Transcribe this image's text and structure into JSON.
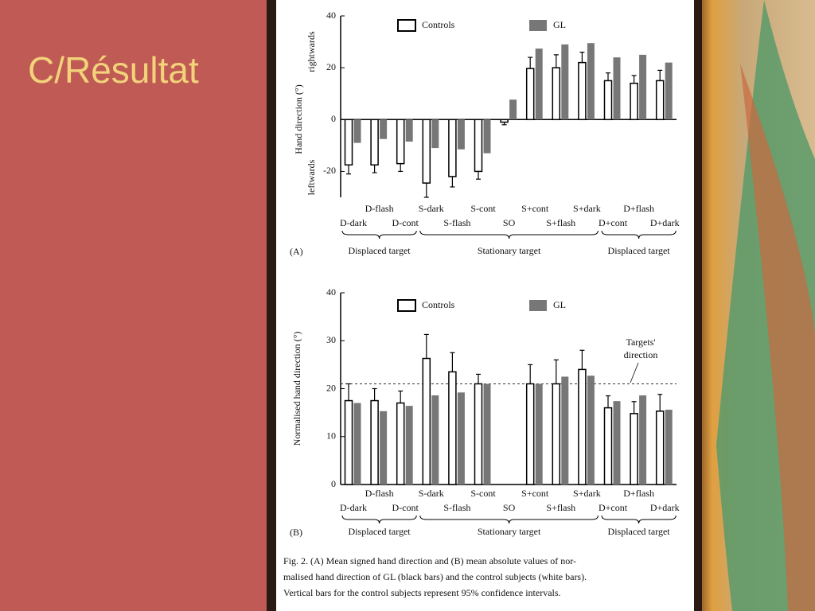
{
  "slide_title": "C/Résultat",
  "caption": [
    "Fig. 2.  (A) Mean signed hand direction and (B) mean absolute values of nor-",
    "malised hand direction of GL (black bars) and the control subjects (white bars).",
    "Vertical bars for the control subjects represent 95% confidence intervals."
  ],
  "chart_data": [
    {
      "type": "bar",
      "panel_label": "(A)",
      "y_label": "Hand direction (°)",
      "y_label_positive": "rightwards",
      "y_label_negative": "leftwards",
      "categories": [
        "D-dark",
        "D-flash",
        "D-cont",
        "S-dark",
        "S-flash",
        "S-cont",
        "SO",
        "S+cont",
        "S+flash",
        "S+dark",
        "D+cont",
        "D+flash",
        "D+dark"
      ],
      "group_labels": [
        "Displaced target",
        "Stationary target",
        "Displaced target"
      ],
      "series": [
        {
          "name": "Controls",
          "color": "#ffffff",
          "values": [
            -17.5,
            -17.5,
            -17,
            -24.5,
            -22,
            -20,
            -1,
            19.7,
            20,
            22,
            15,
            14,
            15
          ],
          "errors": [
            3.5,
            3,
            3,
            5.5,
            4,
            3,
            1,
            4.3,
            5,
            4,
            3,
            3,
            4
          ]
        },
        {
          "name": "GL",
          "color": "#777777",
          "values": [
            -9,
            -7.5,
            -8.5,
            -11,
            -11.5,
            -13,
            7.7,
            27.4,
            29,
            29.5,
            24,
            25,
            22
          ]
        }
      ],
      "ylim": [
        -30,
        40
      ],
      "yticks": [
        -20,
        0,
        20,
        40
      ]
    },
    {
      "type": "bar",
      "panel_label": "(B)",
      "y_label": "Normalised hand direction (°)",
      "categories": [
        "D-dark",
        "D-flash",
        "D-cont",
        "S-dark",
        "S-flash",
        "S-cont",
        "SO",
        "S+cont",
        "S+flash",
        "S+dark",
        "D+cont",
        "D+flash",
        "D+dark"
      ],
      "group_labels": [
        "Displaced target",
        "Stationary target",
        "Displaced target"
      ],
      "series": [
        {
          "name": "Controls",
          "color": "#ffffff",
          "values": [
            17.5,
            17.5,
            17,
            26.3,
            23.5,
            21,
            null,
            21,
            21,
            24,
            16,
            14.8,
            15.3
          ],
          "errors": [
            3.5,
            2.5,
            2.5,
            5,
            4,
            2,
            null,
            4,
            5,
            4,
            2.5,
            2.5,
            3.5
          ]
        },
        {
          "name": "GL",
          "color": "#777777",
          "values": [
            17,
            15.3,
            16.4,
            18.6,
            19.2,
            21,
            null,
            21,
            22.5,
            22.7,
            17.4,
            18.6,
            15.6
          ]
        }
      ],
      "reference_line": 21,
      "annotation": [
        "Targets'",
        "direction"
      ],
      "ylim": [
        0,
        40
      ],
      "yticks": [
        0,
        10,
        20,
        30,
        40
      ]
    }
  ]
}
